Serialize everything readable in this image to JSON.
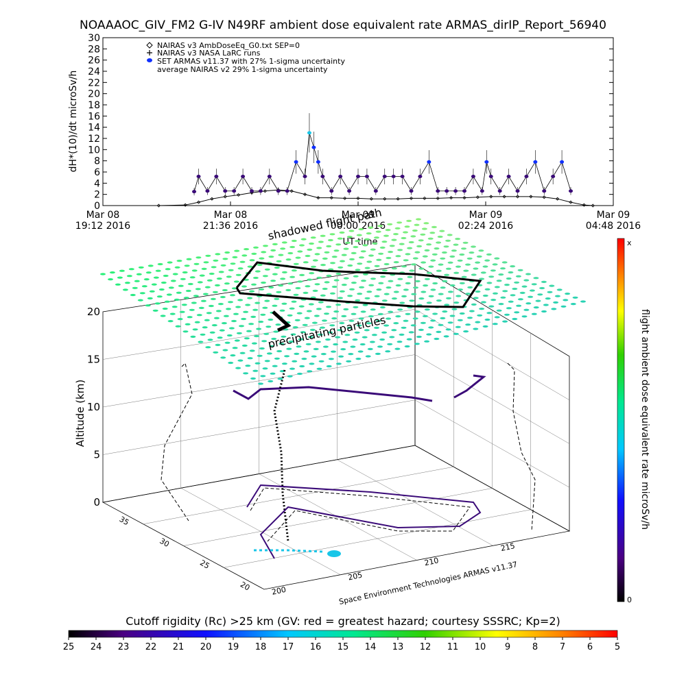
{
  "title": "NOAAAOC_GIV_FM2 G-IV    N49RF  ambient dose equivalent rate ARMAS_dirIP_Report_56940",
  "top_chart": {
    "ylabel": "dH*(10)/dt microSv/h",
    "xlabel": "UT time",
    "yticks": [
      "0",
      "2",
      "4",
      "6",
      "8",
      "10",
      "12",
      "14",
      "16",
      "18",
      "20",
      "22",
      "24",
      "26",
      "28",
      "30"
    ],
    "xticks": [
      {
        "line1": "Mar 08",
        "line2": "19:12 2016"
      },
      {
        "line1": "Mar 08",
        "line2": "21:36 2016"
      },
      {
        "line1": "Mar 09",
        "line2": "00:00 2016"
      },
      {
        "line1": "Mar 09",
        "line2": "02:24 2016"
      },
      {
        "line1": "Mar 09",
        "line2": "04:48 2016"
      }
    ],
    "legend": [
      {
        "symbol": "diamond",
        "label": "NAIRAS v3 AmbDoseEq_G0.txt SEP=0"
      },
      {
        "symbol": "plus",
        "label": "NAIRAS v3 NASA LaRC runs"
      },
      {
        "symbol": "blue-dot",
        "label": "SET ARMAS v11.37 with 27% 1-sigma uncertainty"
      },
      {
        "symbol": "none",
        "label": "average NAIRAS v2 29% 1-sigma uncertainty"
      }
    ]
  },
  "chart_data": [
    {
      "type": "scatter",
      "title": "NOAAAOC_GIV_FM2 G-IV    N49RF  ambient dose equivalent rate ARMAS_dirIP_Report_56940",
      "xlabel": "UT time",
      "ylabel": "dH*(10)/dt microSv/h",
      "ylim": [
        0,
        30
      ],
      "xlim": [
        "2016-03-08 19:12",
        "2016-03-09 04:48"
      ],
      "series": [
        {
          "name": "SET ARMAS v11.37 with 27% 1-sigma uncertainty",
          "x": [
            "20:55",
            "21:00",
            "21:10",
            "21:20",
            "21:30",
            "21:40",
            "21:50",
            "22:00",
            "22:10",
            "22:20",
            "22:30",
            "22:40",
            "22:50",
            "23:00",
            "23:05",
            "23:10",
            "23:15",
            "23:20",
            "23:30",
            "23:40",
            "23:50",
            "00:00",
            "00:10",
            "00:20",
            "00:30",
            "00:40",
            "00:50",
            "01:00",
            "01:10",
            "01:20",
            "01:30",
            "01:40",
            "01:50",
            "02:00",
            "02:10",
            "02:20",
            "02:25",
            "02:30",
            "02:40",
            "02:50",
            "03:00",
            "03:10",
            "03:20",
            "03:30",
            "03:40",
            "03:50",
            "04:00"
          ],
          "y": [
            2.5,
            5.2,
            2.6,
            5.2,
            2.6,
            2.6,
            5.2,
            2.6,
            2.6,
            5.2,
            2.6,
            2.6,
            7.8,
            5.2,
            13.0,
            10.4,
            7.8,
            5.2,
            2.6,
            5.2,
            2.6,
            5.2,
            5.2,
            2.6,
            5.2,
            5.2,
            5.2,
            2.6,
            5.2,
            7.8,
            2.6,
            2.6,
            2.6,
            2.6,
            5.2,
            2.6,
            7.8,
            5.2,
            2.6,
            5.2,
            2.6,
            5.2,
            7.8,
            2.6,
            5.2,
            7.8,
            2.6
          ]
        },
        {
          "name": "NAIRAS v3 AmbDoseEq_G0.txt SEP=0",
          "x": [
            "20:15",
            "20:45",
            "21:00",
            "21:15",
            "21:30",
            "21:45",
            "22:00",
            "22:15",
            "22:30",
            "22:45",
            "23:00",
            "23:15",
            "23:30",
            "23:45",
            "00:00",
            "00:15",
            "00:30",
            "00:45",
            "01:00",
            "01:15",
            "01:30",
            "01:45",
            "02:00",
            "02:15",
            "02:30",
            "02:45",
            "03:00",
            "03:15",
            "03:30",
            "03:45",
            "04:00",
            "04:15",
            "04:25"
          ],
          "y": [
            0.0,
            0.1,
            0.6,
            1.2,
            1.6,
            1.9,
            2.3,
            2.6,
            2.8,
            2.6,
            2.0,
            1.4,
            1.4,
            1.3,
            1.3,
            1.2,
            1.2,
            1.2,
            1.3,
            1.3,
            1.3,
            1.4,
            1.4,
            1.5,
            1.6,
            1.6,
            1.6,
            1.6,
            1.5,
            1.2,
            0.6,
            0.1,
            0.0
          ]
        }
      ]
    },
    {
      "type": "scatter",
      "title": "flight ambient dose equivalent rate microSv/h",
      "xlabel": "",
      "ylabel": "Altitude (km)",
      "zticks": [
        "0",
        "5",
        "10",
        "15",
        "20"
      ],
      "lon_ticks": [
        "200",
        "205",
        "210",
        "215"
      ],
      "lat_ticks": [
        "20",
        "25",
        "30",
        "35"
      ],
      "zlim": [
        0,
        20
      ],
      "annotations": [
        "shadowed flight path",
        "precipitating particles"
      ],
      "colorbar_right": {
        "label": "flight ambient dose equivalent rate microSv/h",
        "top": "x",
        "bottom": "0"
      },
      "colorbar_bottom": {
        "label": "Cutoff rigidity (Rc) >25 km (GV: red = greatest hazard; courtesy SSSRC; Kp=2)",
        "ticks": [
          "25",
          "24",
          "23",
          "22",
          "21",
          "20",
          "19",
          "18",
          "17",
          "16",
          "15",
          "14",
          "13",
          "12",
          "11",
          "10",
          "9",
          "8",
          "7",
          "6",
          "5"
        ]
      }
    }
  ],
  "credit": "Space Environment Technologies ARMAS v11.37",
  "annotation_shadowed": "shadowed flight path",
  "annotation_precip": "precipitating particles",
  "colors": {
    "armas_point": "#3a0a78",
    "armas_highlight": "#1030ff",
    "armas_peak": "#19c6e8",
    "nairas": "#000000",
    "grid_particles": "#2ee2a0"
  }
}
